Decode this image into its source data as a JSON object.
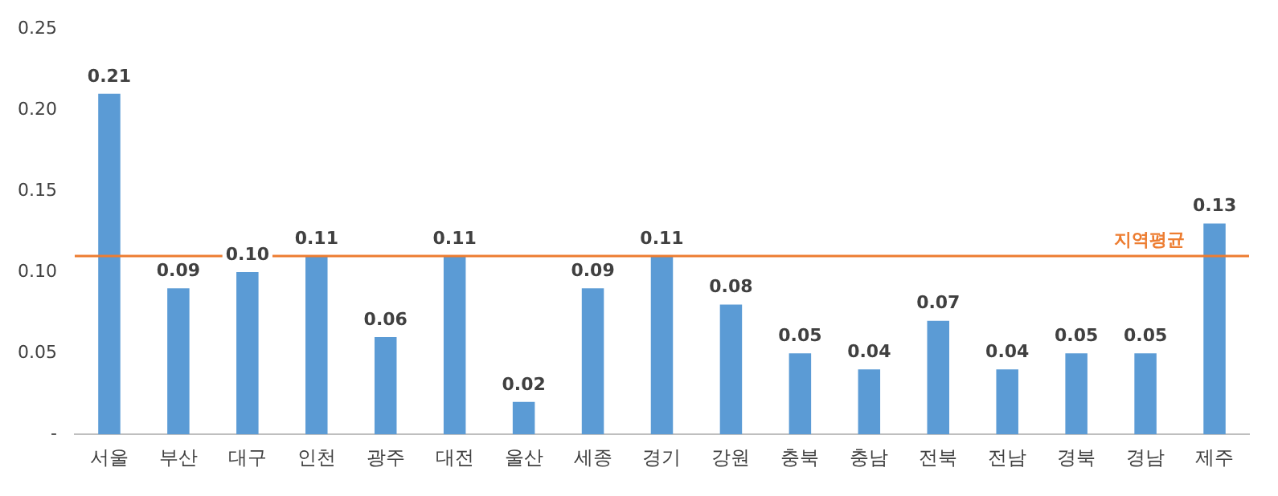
{
  "chart_data": {
    "type": "bar",
    "categories": [
      "서울",
      "부산",
      "대구",
      "인천",
      "광주",
      "대전",
      "울산",
      "세종",
      "경기",
      "강원",
      "충북",
      "충남",
      "전북",
      "전남",
      "경북",
      "경남",
      "제주"
    ],
    "values": [
      0.21,
      0.09,
      0.1,
      0.11,
      0.06,
      0.11,
      0.02,
      0.09,
      0.11,
      0.08,
      0.05,
      0.04,
      0.07,
      0.04,
      0.05,
      0.05,
      0.13
    ],
    "color": "#5b9bd5",
    "ylim": [
      0,
      0.25
    ],
    "yticks": [
      {
        "value": 0,
        "label": "-"
      },
      {
        "value": 0.05,
        "label": "0.05"
      },
      {
        "value": 0.1,
        "label": "0.10"
      },
      {
        "value": 0.15,
        "label": "0.15"
      },
      {
        "value": 0.2,
        "label": "0.20"
      },
      {
        "value": 0.25,
        "label": "0.25"
      }
    ],
    "data_labels": true,
    "value_labels": [
      "0.21",
      "0.09",
      "0.10",
      "0.11",
      "0.06",
      "0.11",
      "0.02",
      "0.09",
      "0.11",
      "0.08",
      "0.05",
      "0.04",
      "0.07",
      "0.04",
      "0.05",
      "0.05",
      "0.13"
    ],
    "ref_lines": [
      {
        "axis": "y",
        "value": 0.11,
        "label": "지역평균",
        "color": "#ed7d31"
      }
    ],
    "grid": false,
    "legend": false
  }
}
